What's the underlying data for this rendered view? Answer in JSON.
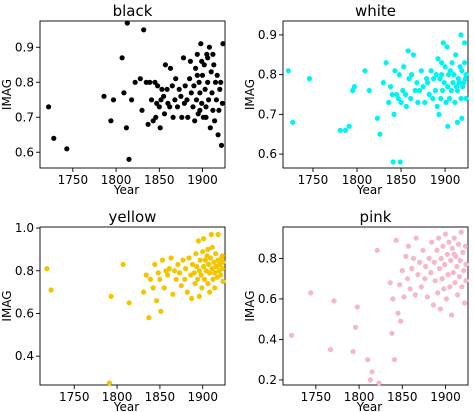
{
  "chart_data": [
    {
      "type": "scatter",
      "title": "black",
      "xlabel": "Year",
      "ylabel": "IMAG",
      "color": "#000000",
      "xlim": [
        1712,
        1926
      ],
      "ylim": [
        0.555,
        0.975
      ],
      "xticks": [
        1750,
        1800,
        1850,
        1900
      ],
      "yticks": [
        0.6,
        0.7,
        0.8,
        0.9
      ],
      "ytick_labels": [
        "0.6",
        "0.7",
        "0.8",
        "0.9"
      ],
      "points": [
        [
          1722,
          0.73
        ],
        [
          1728,
          0.64
        ],
        [
          1743,
          0.61
        ],
        [
          1786,
          0.76
        ],
        [
          1794,
          0.69
        ],
        [
          1797,
          0.75
        ],
        [
          1807,
          0.87
        ],
        [
          1809,
          0.77
        ],
        [
          1812,
          0.67
        ],
        [
          1813,
          0.97
        ],
        [
          1815,
          0.58
        ],
        [
          1818,
          0.75
        ],
        [
          1822,
          0.8
        ],
        [
          1828,
          0.81
        ],
        [
          1830,
          0.72
        ],
        [
          1832,
          0.95
        ],
        [
          1835,
          0.8
        ],
        [
          1837,
          0.68
        ],
        [
          1839,
          0.8
        ],
        [
          1841,
          0.75
        ],
        [
          1843,
          0.69
        ],
        [
          1845,
          0.8
        ],
        [
          1846,
          0.7
        ],
        [
          1847,
          0.74
        ],
        [
          1848,
          0.79
        ],
        [
          1850,
          0.73
        ],
        [
          1851,
          0.67
        ],
        [
          1852,
          0.75
        ],
        [
          1853,
          0.78
        ],
        [
          1855,
          0.76
        ],
        [
          1856,
          0.71
        ],
        [
          1857,
          0.85
        ],
        [
          1859,
          0.78
        ],
        [
          1860,
          0.74
        ],
        [
          1862,
          0.73
        ],
        [
          1863,
          0.84
        ],
        [
          1865,
          0.79
        ],
        [
          1866,
          0.7
        ],
        [
          1868,
          0.75
        ],
        [
          1869,
          0.81
        ],
        [
          1871,
          0.73
        ],
        [
          1873,
          0.78
        ],
        [
          1875,
          0.76
        ],
        [
          1876,
          0.7
        ],
        [
          1878,
          0.87
        ],
        [
          1879,
          0.74
        ],
        [
          1880,
          0.79
        ],
        [
          1882,
          0.75
        ],
        [
          1883,
          0.7
        ],
        [
          1885,
          0.81
        ],
        [
          1886,
          0.86
        ],
        [
          1887,
          0.77
        ],
        [
          1889,
          0.73
        ],
        [
          1890,
          0.79
        ],
        [
          1891,
          0.69
        ],
        [
          1892,
          0.84
        ],
        [
          1893,
          0.75
        ],
        [
          1894,
          0.88
        ],
        [
          1895,
          0.71
        ],
        [
          1896,
          0.8
        ],
        [
          1897,
          0.77
        ],
        [
          1898,
          0.91
        ],
        [
          1899,
          0.74
        ],
        [
          1900,
          0.82
        ],
        [
          1901,
          0.7
        ],
        [
          1902,
          0.85
        ],
        [
          1903,
          0.78
        ],
        [
          1904,
          0.73
        ],
        [
          1905,
          0.88
        ],
        [
          1906,
          0.8
        ],
        [
          1907,
          0.75
        ],
        [
          1908,
          0.9
        ],
        [
          1909,
          0.67
        ],
        [
          1910,
          0.83
        ],
        [
          1911,
          0.77
        ],
        [
          1912,
          0.72
        ],
        [
          1913,
          0.85
        ],
        [
          1914,
          0.69
        ],
        [
          1915,
          0.8
        ],
        [
          1916,
          0.75
        ],
        [
          1917,
          0.82
        ],
        [
          1918,
          0.65
        ],
        [
          1919,
          0.72
        ],
        [
          1920,
          0.78
        ],
        [
          1921,
          0.8
        ],
        [
          1922,
          0.62
        ],
        [
          1923,
          0.74
        ],
        [
          1924,
          0.91
        ],
        [
          1899,
          0.86
        ],
        [
          1894,
          0.82
        ],
        [
          1906,
          0.87
        ],
        [
          1912,
          0.88
        ],
        [
          1904,
          0.7
        ],
        [
          1897,
          0.72
        ]
      ]
    },
    {
      "type": "scatter",
      "title": "white",
      "xlabel": "Year",
      "ylabel": "IMAG",
      "color": "#00f2f2",
      "xlim": [
        1716,
        1926
      ],
      "ylim": [
        0.565,
        0.935
      ],
      "xticks": [
        1750,
        1800,
        1850,
        1900
      ],
      "yticks": [
        0.6,
        0.7,
        0.8,
        0.9
      ],
      "ytick_labels": [
        "0.6",
        "0.7",
        "0.8",
        "0.9"
      ],
      "points": [
        [
          1722,
          0.81
        ],
        [
          1727,
          0.68
        ],
        [
          1746,
          0.79
        ],
        [
          1781,
          0.66
        ],
        [
          1787,
          0.66
        ],
        [
          1791,
          0.67
        ],
        [
          1795,
          0.76
        ],
        [
          1797,
          0.77
        ],
        [
          1809,
          0.81
        ],
        [
          1814,
          0.76
        ],
        [
          1823,
          0.69
        ],
        [
          1826,
          0.65
        ],
        [
          1830,
          0.78
        ],
        [
          1833,
          0.83
        ],
        [
          1836,
          0.73
        ],
        [
          1838,
          0.77
        ],
        [
          1840,
          0.75
        ],
        [
          1841,
          0.58
        ],
        [
          1842,
          0.7
        ],
        [
          1843,
          0.81
        ],
        [
          1845,
          0.75
        ],
        [
          1847,
          0.74
        ],
        [
          1848,
          0.8
        ],
        [
          1849,
          0.58
        ],
        [
          1850,
          0.73
        ],
        [
          1852,
          0.76
        ],
        [
          1853,
          0.82
        ],
        [
          1855,
          0.75
        ],
        [
          1856,
          0.72
        ],
        [
          1858,
          0.86
        ],
        [
          1859,
          0.79
        ],
        [
          1861,
          0.74
        ],
        [
          1862,
          0.8
        ],
        [
          1864,
          0.85
        ],
        [
          1866,
          0.76
        ],
        [
          1868,
          0.78
        ],
        [
          1869,
          0.73
        ],
        [
          1871,
          0.76
        ],
        [
          1873,
          0.81
        ],
        [
          1875,
          0.77
        ],
        [
          1877,
          0.73
        ],
        [
          1879,
          0.79
        ],
        [
          1880,
          0.78
        ],
        [
          1882,
          0.75
        ],
        [
          1884,
          0.81
        ],
        [
          1886,
          0.74
        ],
        [
          1887,
          0.79
        ],
        [
          1889,
          0.76
        ],
        [
          1890,
          0.8
        ],
        [
          1891,
          0.72
        ],
        [
          1892,
          0.84
        ],
        [
          1893,
          0.7
        ],
        [
          1894,
          0.79
        ],
        [
          1895,
          0.74
        ],
        [
          1896,
          0.8
        ],
        [
          1897,
          0.76
        ],
        [
          1898,
          0.88
        ],
        [
          1899,
          0.78
        ],
        [
          1900,
          0.82
        ],
        [
          1901,
          0.73
        ],
        [
          1902,
          0.87
        ],
        [
          1903,
          0.77
        ],
        [
          1904,
          0.8
        ],
        [
          1905,
          0.74
        ],
        [
          1906,
          0.81
        ],
        [
          1907,
          0.76
        ],
        [
          1908,
          0.83
        ],
        [
          1909,
          0.78
        ],
        [
          1910,
          0.8
        ],
        [
          1911,
          0.73
        ],
        [
          1912,
          0.85
        ],
        [
          1913,
          0.77
        ],
        [
          1914,
          0.76
        ],
        [
          1915,
          0.79
        ],
        [
          1916,
          0.78
        ],
        [
          1917,
          0.82
        ],
        [
          1918,
          0.74
        ],
        [
          1919,
          0.81
        ],
        [
          1920,
          0.77
        ],
        [
          1921,
          0.78
        ],
        [
          1922,
          0.83
        ],
        [
          1923,
          0.79
        ],
        [
          1924,
          0.8
        ],
        [
          1925,
          0.74
        ],
        [
          1914,
          0.68
        ],
        [
          1919,
          0.69
        ],
        [
          1903,
          0.67
        ],
        [
          1896,
          0.83
        ],
        [
          1922,
          0.88
        ],
        [
          1918,
          0.9
        ]
      ]
    },
    {
      "type": "scatter",
      "title": "yellow",
      "xlabel": "Year",
      "ylabel": "IMAG",
      "color": "#f5c400",
      "xlim": [
        1710,
        1926
      ],
      "ylim": [
        0.265,
        1.005
      ],
      "xticks": [
        1750,
        1800,
        1850,
        1900
      ],
      "yticks": [
        0.4,
        0.6,
        0.8,
        1.0
      ],
      "ytick_labels": [
        "0.4",
        "0.6",
        "0.8",
        "1.0"
      ],
      "points": [
        [
          1718,
          0.81
        ],
        [
          1723,
          0.71
        ],
        [
          1791,
          0.27
        ],
        [
          1793,
          0.68
        ],
        [
          1807,
          0.83
        ],
        [
          1814,
          0.65
        ],
        [
          1831,
          0.7
        ],
        [
          1834,
          0.78
        ],
        [
          1837,
          0.58
        ],
        [
          1839,
          0.76
        ],
        [
          1842,
          0.72
        ],
        [
          1844,
          0.83
        ],
        [
          1846,
          0.66
        ],
        [
          1848,
          0.79
        ],
        [
          1850,
          0.76
        ],
        [
          1851,
          0.61
        ],
        [
          1853,
          0.85
        ],
        [
          1855,
          0.72
        ],
        [
          1857,
          0.8
        ],
        [
          1859,
          0.78
        ],
        [
          1861,
          0.81
        ],
        [
          1863,
          0.86
        ],
        [
          1865,
          0.69
        ],
        [
          1867,
          0.8
        ],
        [
          1869,
          0.76
        ],
        [
          1871,
          0.83
        ],
        [
          1873,
          0.79
        ],
        [
          1875,
          0.73
        ],
        [
          1877,
          0.85
        ],
        [
          1879,
          0.76
        ],
        [
          1880,
          0.81
        ],
        [
          1882,
          0.7
        ],
        [
          1884,
          0.86
        ],
        [
          1886,
          0.78
        ],
        [
          1887,
          0.67
        ],
        [
          1888,
          0.83
        ],
        [
          1890,
          0.79
        ],
        [
          1891,
          0.74
        ],
        [
          1892,
          0.88
        ],
        [
          1893,
          0.82
        ],
        [
          1894,
          0.76
        ],
        [
          1895,
          0.94
        ],
        [
          1896,
          0.8
        ],
        [
          1897,
          0.85
        ],
        [
          1898,
          0.78
        ],
        [
          1899,
          0.72
        ],
        [
          1900,
          0.89
        ],
        [
          1901,
          0.82
        ],
        [
          1902,
          0.76
        ],
        [
          1903,
          0.85
        ],
        [
          1904,
          0.8
        ],
        [
          1905,
          0.87
        ],
        [
          1906,
          0.74
        ],
        [
          1907,
          0.83
        ],
        [
          1908,
          0.79
        ],
        [
          1909,
          0.86
        ],
        [
          1910,
          0.97
        ],
        [
          1911,
          0.81
        ],
        [
          1912,
          0.76
        ],
        [
          1913,
          0.84
        ],
        [
          1914,
          0.79
        ],
        [
          1915,
          0.88
        ],
        [
          1916,
          0.82
        ],
        [
          1917,
          0.77
        ],
        [
          1918,
          0.85
        ],
        [
          1919,
          0.8
        ],
        [
          1920,
          0.83
        ],
        [
          1921,
          0.78
        ],
        [
          1922,
          0.86
        ],
        [
          1923,
          0.81
        ],
        [
          1924,
          0.75
        ],
        [
          1925,
          0.84
        ],
        [
          1911,
          0.91
        ],
        [
          1906,
          0.9
        ],
        [
          1918,
          0.97
        ],
        [
          1901,
          0.95
        ],
        [
          1923,
          0.87
        ],
        [
          1914,
          0.72
        ],
        [
          1896,
          0.68
        ],
        [
          1908,
          0.7
        ]
      ]
    },
    {
      "type": "scatter",
      "title": "pink",
      "xlabel": "Year",
      "ylabel": "IMAG",
      "color": "#f5b8c6",
      "xlim": [
        1712,
        1926
      ],
      "ylim": [
        0.175,
        0.955
      ],
      "xticks": [
        1750,
        1800,
        1850,
        1900
      ],
      "yticks": [
        0.2,
        0.4,
        0.6,
        0.8
      ],
      "ytick_labels": [
        "0.2",
        "0.4",
        "0.6",
        "0.8"
      ],
      "points": [
        [
          1722,
          0.42
        ],
        [
          1744,
          0.63
        ],
        [
          1767,
          0.35
        ],
        [
          1771,
          0.59
        ],
        [
          1793,
          0.34
        ],
        [
          1796,
          0.46
        ],
        [
          1798,
          0.56
        ],
        [
          1810,
          0.3
        ],
        [
          1813,
          0.2
        ],
        [
          1815,
          0.24
        ],
        [
          1821,
          0.84
        ],
        [
          1823,
          0.13
        ],
        [
          1836,
          0.68
        ],
        [
          1838,
          0.43
        ],
        [
          1839,
          0.6
        ],
        [
          1841,
          0.3
        ],
        [
          1843,
          0.89
        ],
        [
          1845,
          0.53
        ],
        [
          1847,
          0.67
        ],
        [
          1848,
          0.49
        ],
        [
          1850,
          0.74
        ],
        [
          1852,
          0.61
        ],
        [
          1854,
          0.81
        ],
        [
          1856,
          0.7
        ],
        [
          1857,
          0.86
        ],
        [
          1859,
          0.65
        ],
        [
          1861,
          0.75
        ],
        [
          1863,
          0.8
        ],
        [
          1865,
          0.62
        ],
        [
          1866,
          0.9
        ],
        [
          1868,
          0.72
        ],
        [
          1870,
          0.78
        ],
        [
          1872,
          0.66
        ],
        [
          1874,
          0.84
        ],
        [
          1876,
          0.7
        ],
        [
          1877,
          0.76
        ],
        [
          1879,
          0.61
        ],
        [
          1881,
          0.8
        ],
        [
          1883,
          0.73
        ],
        [
          1884,
          0.88
        ],
        [
          1886,
          0.57
        ],
        [
          1887,
          0.78
        ],
        [
          1888,
          0.69
        ],
        [
          1890,
          0.84
        ],
        [
          1891,
          0.63
        ],
        [
          1892,
          0.9
        ],
        [
          1893,
          0.75
        ],
        [
          1894,
          0.55
        ],
        [
          1895,
          0.8
        ],
        [
          1896,
          0.7
        ],
        [
          1897,
          0.86
        ],
        [
          1898,
          0.65
        ],
        [
          1899,
          0.77
        ],
        [
          1900,
          0.92
        ],
        [
          1901,
          0.6
        ],
        [
          1902,
          0.82
        ],
        [
          1903,
          0.72
        ],
        [
          1904,
          0.88
        ],
        [
          1905,
          0.66
        ],
        [
          1906,
          0.79
        ],
        [
          1907,
          0.52
        ],
        [
          1908,
          0.85
        ],
        [
          1909,
          0.73
        ],
        [
          1910,
          0.9
        ],
        [
          1911,
          0.68
        ],
        [
          1912,
          0.81
        ],
        [
          1913,
          0.76
        ],
        [
          1914,
          0.62
        ],
        [
          1915,
          0.87
        ],
        [
          1916,
          0.71
        ],
        [
          1917,
          0.79
        ],
        [
          1918,
          0.93
        ],
        [
          1919,
          0.66
        ],
        [
          1920,
          0.83
        ],
        [
          1921,
          0.74
        ],
        [
          1922,
          0.58
        ],
        [
          1923,
          0.86
        ],
        [
          1924,
          0.77
        ],
        [
          1925,
          0.69
        ],
        [
          1910,
          0.82
        ]
      ]
    }
  ]
}
